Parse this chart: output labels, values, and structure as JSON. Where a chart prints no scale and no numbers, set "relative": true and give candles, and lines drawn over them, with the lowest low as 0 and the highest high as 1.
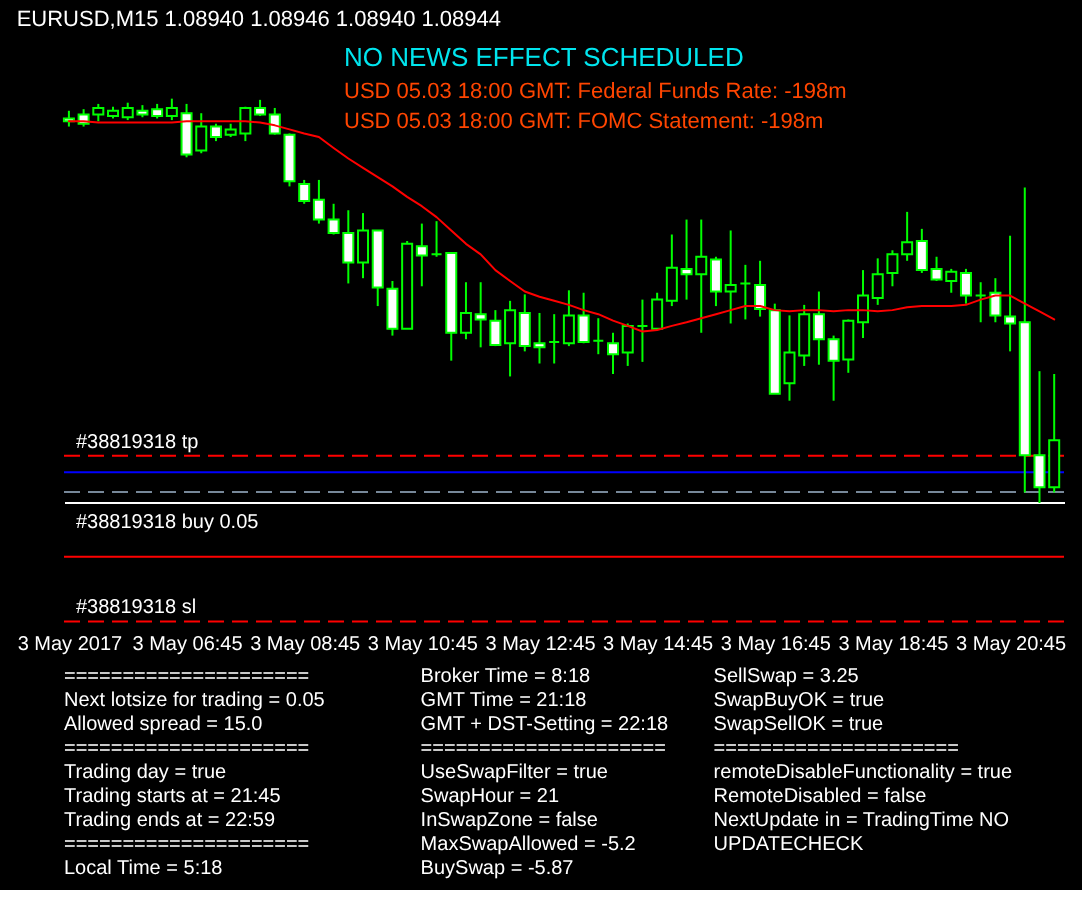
{
  "chart_data": [
    {
      "type": "candlestick",
      "title": "EURUSD,M15 1.08940 1.08946 1.08940 1.08944",
      "relative": true,
      "x": [
        "2017-05-03T04:45",
        "2017-05-03T05:00",
        "2017-05-03T05:15",
        "2017-05-03T05:30",
        "2017-05-03T05:45",
        "2017-05-03T06:00",
        "2017-05-03T06:15",
        "2017-05-03T06:30",
        "2017-05-03T06:45",
        "2017-05-03T07:00",
        "2017-05-03T07:15",
        "2017-05-03T07:30",
        "2017-05-03T07:45",
        "2017-05-03T08:00",
        "2017-05-03T08:15",
        "2017-05-03T08:30",
        "2017-05-03T08:45",
        "2017-05-03T09:00",
        "2017-05-03T09:15",
        "2017-05-03T09:30",
        "2017-05-03T09:45",
        "2017-05-03T10:00",
        "2017-05-03T10:15",
        "2017-05-03T10:30",
        "2017-05-03T10:45",
        "2017-05-03T11:00",
        "2017-05-03T11:15",
        "2017-05-03T11:30",
        "2017-05-03T11:45",
        "2017-05-03T12:00",
        "2017-05-03T12:15",
        "2017-05-03T12:30",
        "2017-05-03T12:45",
        "2017-05-03T13:00",
        "2017-05-03T13:15",
        "2017-05-03T13:30",
        "2017-05-03T13:45",
        "2017-05-03T14:00",
        "2017-05-03T14:15",
        "2017-05-03T14:30",
        "2017-05-03T14:45",
        "2017-05-03T15:00",
        "2017-05-03T15:15",
        "2017-05-03T15:30",
        "2017-05-03T15:45",
        "2017-05-03T16:00",
        "2017-05-03T16:15",
        "2017-05-03T16:30",
        "2017-05-03T16:45",
        "2017-05-03T17:00",
        "2017-05-03T17:15",
        "2017-05-03T17:30",
        "2017-05-03T17:45",
        "2017-05-03T18:00",
        "2017-05-03T18:15",
        "2017-05-03T18:30",
        "2017-05-03T18:45",
        "2017-05-03T19:00",
        "2017-05-03T19:15",
        "2017-05-03T19:30",
        "2017-05-03T19:45",
        "2017-05-03T20:00",
        "2017-05-03T20:15",
        "2017-05-03T20:30",
        "2017-05-03T20:45",
        "2017-05-03T21:00",
        "2017-05-03T21:15",
        "2017-05-03T21:30"
      ],
      "ohlc": [
        [
          0.951,
          0.97,
          0.931,
          0.944
        ],
        [
          0.961,
          0.974,
          0.931,
          0.938
        ],
        [
          0.961,
          0.987,
          0.944,
          0.977
        ],
        [
          0.957,
          0.98,
          0.951,
          0.97
        ],
        [
          0.954,
          0.99,
          0.947,
          0.977
        ],
        [
          0.97,
          0.984,
          0.954,
          0.961
        ],
        [
          0.974,
          0.987,
          0.951,
          0.957
        ],
        [
          0.957,
          1.0,
          0.947,
          0.977
        ],
        [
          0.964,
          0.987,
          0.855,
          0.862
        ],
        [
          0.872,
          0.964,
          0.865,
          0.931
        ],
        [
          0.931,
          0.938,
          0.895,
          0.905
        ],
        [
          0.911,
          0.938,
          0.905,
          0.924
        ],
        [
          0.914,
          0.98,
          0.895,
          0.977
        ],
        [
          0.977,
          0.997,
          0.957,
          0.961
        ],
        [
          0.961,
          0.977,
          0.911,
          0.914
        ],
        [
          0.911,
          0.914,
          0.783,
          0.796
        ],
        [
          0.789,
          0.799,
          0.74,
          0.747
        ],
        [
          0.75,
          0.799,
          0.691,
          0.701
        ],
        [
          0.701,
          0.74,
          0.664,
          0.668
        ],
        [
          0.668,
          0.724,
          0.543,
          0.595
        ],
        [
          0.595,
          0.717,
          0.556,
          0.674
        ],
        [
          0.674,
          0.674,
          0.487,
          0.533
        ],
        [
          0.53,
          0.549,
          0.414,
          0.431
        ],
        [
          0.431,
          0.648,
          0.431,
          0.641
        ],
        [
          0.635,
          0.691,
          0.536,
          0.612
        ],
        [
          0.615,
          0.697,
          0.609,
          0.615
        ],
        [
          0.618,
          0.618,
          0.352,
          0.421
        ],
        [
          0.421,
          0.546,
          0.405,
          0.47
        ],
        [
          0.467,
          0.546,
          0.385,
          0.454
        ],
        [
          0.451,
          0.477,
          0.388,
          0.391
        ],
        [
          0.395,
          0.5,
          0.313,
          0.477
        ],
        [
          0.47,
          0.516,
          0.375,
          0.388
        ],
        [
          0.395,
          0.47,
          0.345,
          0.385
        ],
        [
          0.398,
          0.467,
          0.345,
          0.398
        ],
        [
          0.395,
          0.526,
          0.388,
          0.464
        ],
        [
          0.464,
          0.52,
          0.395,
          0.398
        ],
        [
          0.401,
          0.457,
          0.368,
          0.401
        ],
        [
          0.395,
          0.421,
          0.319,
          0.368
        ],
        [
          0.372,
          0.444,
          0.339,
          0.438
        ],
        [
          0.438,
          0.503,
          0.349,
          0.438
        ],
        [
          0.431,
          0.52,
          0.428,
          0.503
        ],
        [
          0.5,
          0.664,
          0.487,
          0.582
        ],
        [
          0.579,
          0.701,
          0.503,
          0.566
        ],
        [
          0.566,
          0.701,
          0.421,
          0.609
        ],
        [
          0.602,
          0.609,
          0.487,
          0.523
        ],
        [
          0.523,
          0.674,
          0.444,
          0.539
        ],
        [
          0.543,
          0.589,
          0.454,
          0.543
        ],
        [
          0.539,
          0.599,
          0.461,
          0.48
        ],
        [
          0.477,
          0.493,
          0.27,
          0.27
        ],
        [
          0.296,
          0.464,
          0.253,
          0.372
        ],
        [
          0.365,
          0.49,
          0.339,
          0.467
        ],
        [
          0.467,
          0.523,
          0.342,
          0.405
        ],
        [
          0.405,
          0.414,
          0.253,
          0.352
        ],
        [
          0.355,
          0.454,
          0.322,
          0.451
        ],
        [
          0.447,
          0.576,
          0.408,
          0.513
        ],
        [
          0.507,
          0.605,
          0.49,
          0.566
        ],
        [
          0.569,
          0.625,
          0.536,
          0.615
        ],
        [
          0.615,
          0.72,
          0.599,
          0.645
        ],
        [
          0.648,
          0.678,
          0.569,
          0.576
        ],
        [
          0.579,
          0.609,
          0.549,
          0.553
        ],
        [
          0.549,
          0.579,
          0.52,
          0.572
        ],
        [
          0.569,
          0.579,
          0.493,
          0.513
        ],
        [
          0.513,
          0.546,
          0.447,
          0.513
        ],
        [
          0.52,
          0.556,
          0.447,
          0.464
        ],
        [
          0.461,
          0.661,
          0.375,
          0.444
        ],
        [
          0.447,
          0.78,
          0.026,
          0.118
        ],
        [
          0.118,
          0.326,
          0.0,
          0.039
        ],
        [
          0.039,
          0.319,
          0.026,
          0.155
        ]
      ],
      "color": "#00ff00",
      "colors": [
        "#ffffff",
        "#ffffff",
        "#000000",
        "#000000",
        "#000000",
        "#ffffff",
        "#ffffff",
        "#000000",
        "#ffffff",
        "#000000",
        "#ffffff",
        "#000000",
        "#000000",
        "#ffffff",
        "#ffffff",
        "#ffffff",
        "#ffffff",
        "#ffffff",
        "#ffffff",
        "#ffffff",
        "#000000",
        "#ffffff",
        "#ffffff",
        "#000000",
        "#ffffff",
        "#00ff00",
        "#ffffff",
        "#000000",
        "#ffffff",
        "#ffffff",
        "#000000",
        "#ffffff",
        "#ffffff",
        "#00ff00",
        "#000000",
        "#ffffff",
        "#00ff00",
        "#ffffff",
        "#000000",
        "#00ff00",
        "#000000",
        "#000000",
        "#ffffff",
        "#000000",
        "#ffffff",
        "#000000",
        "#00ff00",
        "#ffffff",
        "#ffffff",
        "#000000",
        "#000000",
        "#ffffff",
        "#ffffff",
        "#000000",
        "#000000",
        "#000000",
        "#000000",
        "#000000",
        "#ffffff",
        "#ffffff",
        "#000000",
        "#ffffff",
        "#00ff00",
        "#ffffff",
        "#ffffff",
        "#ffffff",
        "#ffffff",
        "#000000"
      ],
      "series": [
        {
          "type": "line",
          "color": "#ff0000",
          "values": [
            0.944,
            0.944,
            0.941,
            0.941,
            0.941,
            0.941,
            0.941,
            0.941,
            0.944,
            0.944,
            0.944,
            0.944,
            0.944,
            0.941,
            0.934,
            0.924,
            0.914,
            0.905,
            0.878,
            0.852,
            0.829,
            0.806,
            0.783,
            0.757,
            0.734,
            0.707,
            0.674,
            0.641,
            0.615,
            0.576,
            0.549,
            0.523,
            0.51,
            0.5,
            0.49,
            0.477,
            0.467,
            0.451,
            0.438,
            0.424,
            0.428,
            0.438,
            0.447,
            0.457,
            0.467,
            0.477,
            0.487,
            0.487,
            0.477,
            0.474,
            0.477,
            0.477,
            0.474,
            0.477,
            0.477,
            0.474,
            0.477,
            0.484,
            0.487,
            0.487,
            0.487,
            0.49,
            0.503,
            0.513,
            0.513,
            0.493,
            0.474,
            0.454
          ]
        }
      ],
      "xlim": [
        "2017-05-03T04:40",
        "2017-05-03T21:40"
      ],
      "xticks": [
        {
          "value": "2017-05-03T04:45",
          "label": "3 May 2017"
        },
        {
          "value": "2017-05-03T06:45",
          "label": "3 May 06:45"
        },
        {
          "value": "2017-05-03T08:45",
          "label": "3 May 08:45"
        },
        {
          "value": "2017-05-03T10:45",
          "label": "3 May 10:45"
        },
        {
          "value": "2017-05-03T12:45",
          "label": "3 May 12:45"
        },
        {
          "value": "2017-05-03T14:45",
          "label": "3 May 14:45"
        },
        {
          "value": "2017-05-03T16:45",
          "label": "3 May 16:45"
        },
        {
          "value": "2017-05-03T18:45",
          "label": "3 May 18:45"
        },
        {
          "value": "2017-05-03T20:45",
          "label": "3 May 20:45"
        }
      ],
      "ref_lines": [
        {
          "axis": "y",
          "value": 0.117,
          "label": "#38819318 tp",
          "color": "#ff0000",
          "line_style": "dashed"
        },
        {
          "axis": "y",
          "value": 0.076,
          "color": "#0000ff"
        },
        {
          "axis": "y",
          "value": 0.027,
          "label": "#38819318 buy 0.05",
          "color": "#778899",
          "line_style": "dashed"
        },
        {
          "axis": "y",
          "value": -0.133,
          "color": "#ff0000"
        },
        {
          "axis": "y",
          "value": -0.293,
          "label": "#38819318 sl",
          "color": "#ff0000",
          "line_style": "dashed"
        }
      ],
      "annotations": [
        "NO NEWS EFFECT SCHEDULED",
        "USD 05.03 18:00 GMT: Federal Funds Rate: -198m",
        "USD 05.03 18:00 GMT: FOMC Statement: -198m"
      ]
    },
    {
      "type": "other",
      "annotations": [
        "=====================",
        "Next lotsize for trading = 0.05",
        "Allowed spread = 15.0",
        "=====================",
        "Trading day = true",
        "Trading starts at = 21:45",
        "Trading ends at = 22:59",
        "=====================",
        "Local Time = 5:18",
        "Broker Time = 8:18",
        "GMT Time = 21:18",
        "GMT + DST-Setting = 22:18",
        "=====================",
        "UseSwapFilter = true",
        "SwapHour = 21",
        "InSwapZone = false",
        "MaxSwapAllowed = -5.2",
        "BuySwap = -5.87",
        "SellSwap = 3.25",
        "SwapBuyOK = true",
        "SwapSellOK = true",
        "=====================",
        "remoteDisableFunctionality = true",
        "RemoteDisabled = false",
        "NextUpdate in = TradingTime NO UPDATECHECK"
      ]
    }
  ]
}
